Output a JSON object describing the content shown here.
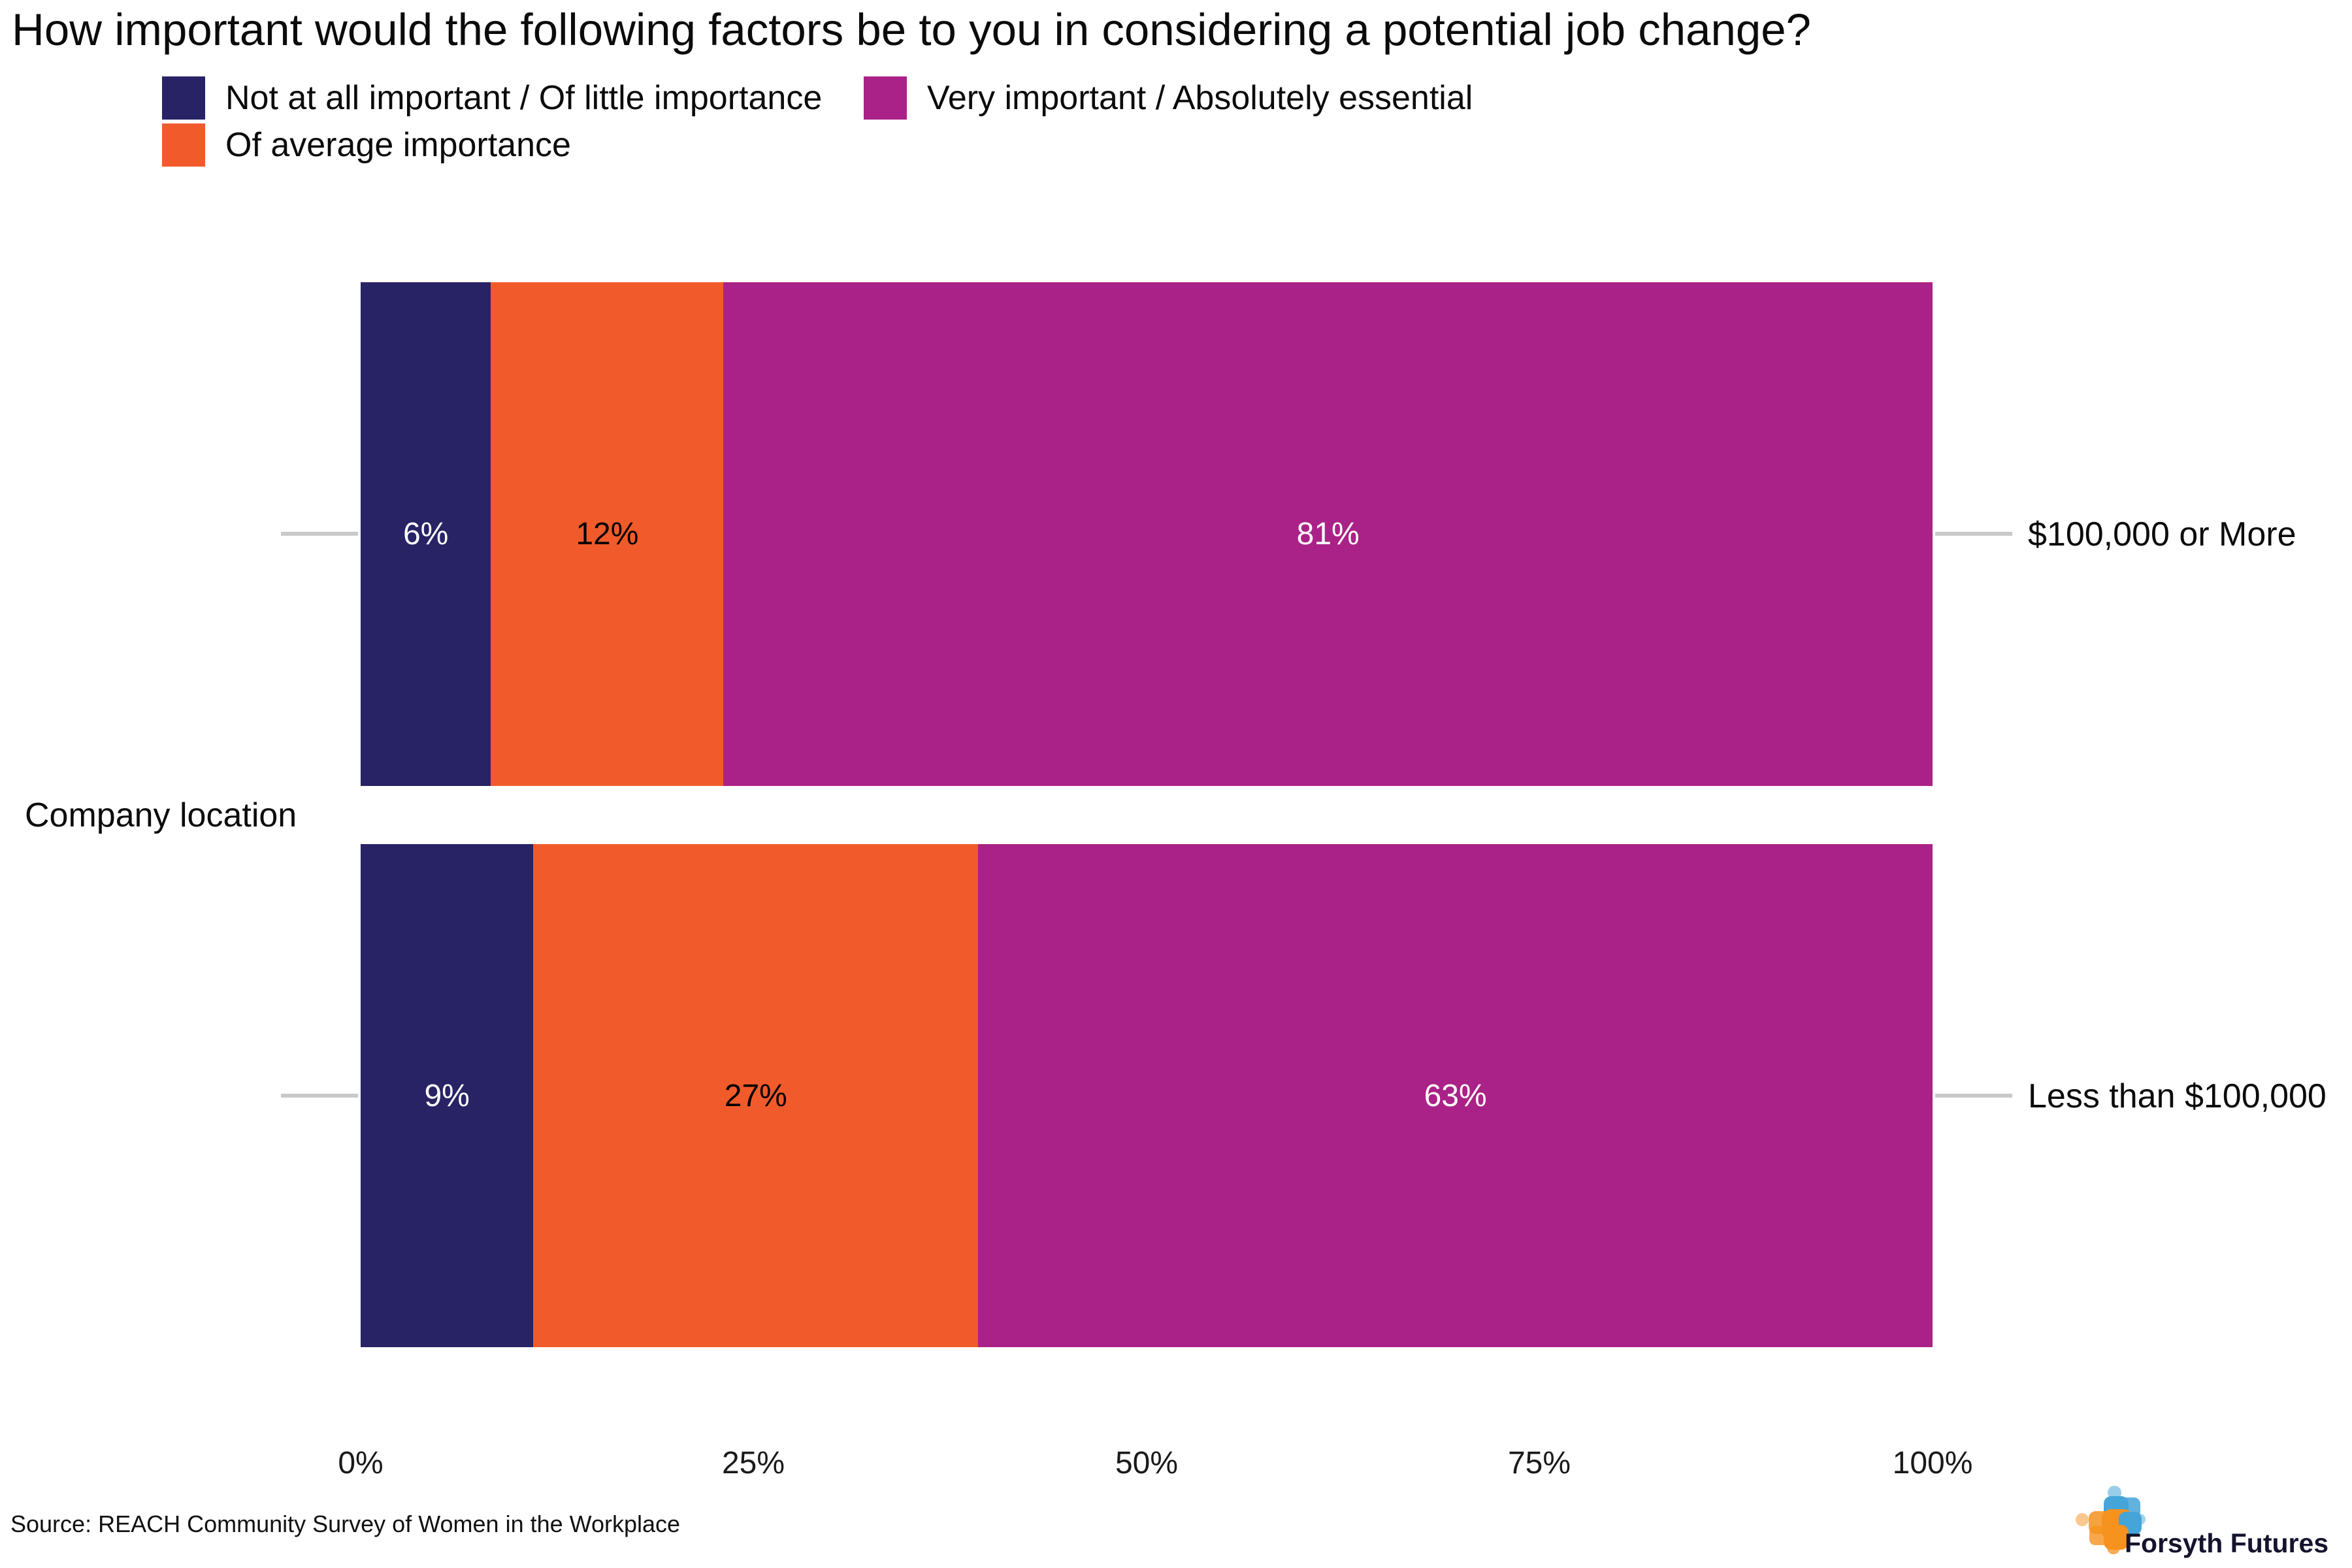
{
  "title": "How important would the following factors be to you in considering a potential job change?",
  "source": "Source: REACH Community Survey of Women in the Workplace",
  "logo": {
    "text": "Forsyth Futures",
    "orange": "#F6921E",
    "blue": "#45A5D8"
  },
  "colors": {
    "not_important": "#282365",
    "average_importance": "#F15B2B",
    "very_important": "#AA2287",
    "tick_gray": "#C9C9C9"
  },
  "chart_data": {
    "type": "bar",
    "stacked": true,
    "orientation": "horizontal",
    "title": "How important would the following factors be to you in considering a potential job change?",
    "y_axis_label": "Company location",
    "x_ticks": [
      "0%",
      "25%",
      "50%",
      "75%",
      "100%"
    ],
    "xlim": [
      0,
      100
    ],
    "grid": false,
    "legend_position": "top-left",
    "legend": [
      {
        "label": "Not at all important / Of little importance",
        "color": "#282365"
      },
      {
        "label": "Of average importance",
        "color": "#F15B2B"
      },
      {
        "label": "Very important / Absolutely essential",
        "color": "#AA2287"
      }
    ],
    "categories": [
      "$100,000 or More",
      "Less than $100,000"
    ],
    "series": [
      {
        "name": "Not at all important / Of little importance",
        "values": [
          6,
          9
        ]
      },
      {
        "name": "Of average importance",
        "values": [
          12,
          27
        ]
      },
      {
        "name": "Very important / Absolutely essential",
        "values": [
          81,
          63
        ]
      }
    ],
    "rows": [
      {
        "category": "$100,000 or More",
        "segments": [
          {
            "series": "Not at all important / Of little importance",
            "value": 6,
            "label": "6%",
            "color": "#282365",
            "text_color": "#FFFFFF"
          },
          {
            "series": "Of average importance",
            "value": 12,
            "label": "12%",
            "color": "#F15B2B",
            "text_color": "#000000"
          },
          {
            "series": "Very important / Absolutely essential",
            "value": 81,
            "label": "81%",
            "color": "#AA2287",
            "text_color": "#FFFFFF"
          }
        ]
      },
      {
        "category": "Less than $100,000",
        "segments": [
          {
            "series": "Not at all important / Of little importance",
            "value": 9,
            "label": "9%",
            "color": "#282365",
            "text_color": "#FFFFFF"
          },
          {
            "series": "Of average importance",
            "value": 27,
            "label": "27%",
            "color": "#F15B2B",
            "text_color": "#000000"
          },
          {
            "series": "Very important / Absolutely essential",
            "value": 63,
            "label": "63%",
            "color": "#AA2287",
            "text_color": "#FFFFFF"
          }
        ]
      }
    ]
  }
}
